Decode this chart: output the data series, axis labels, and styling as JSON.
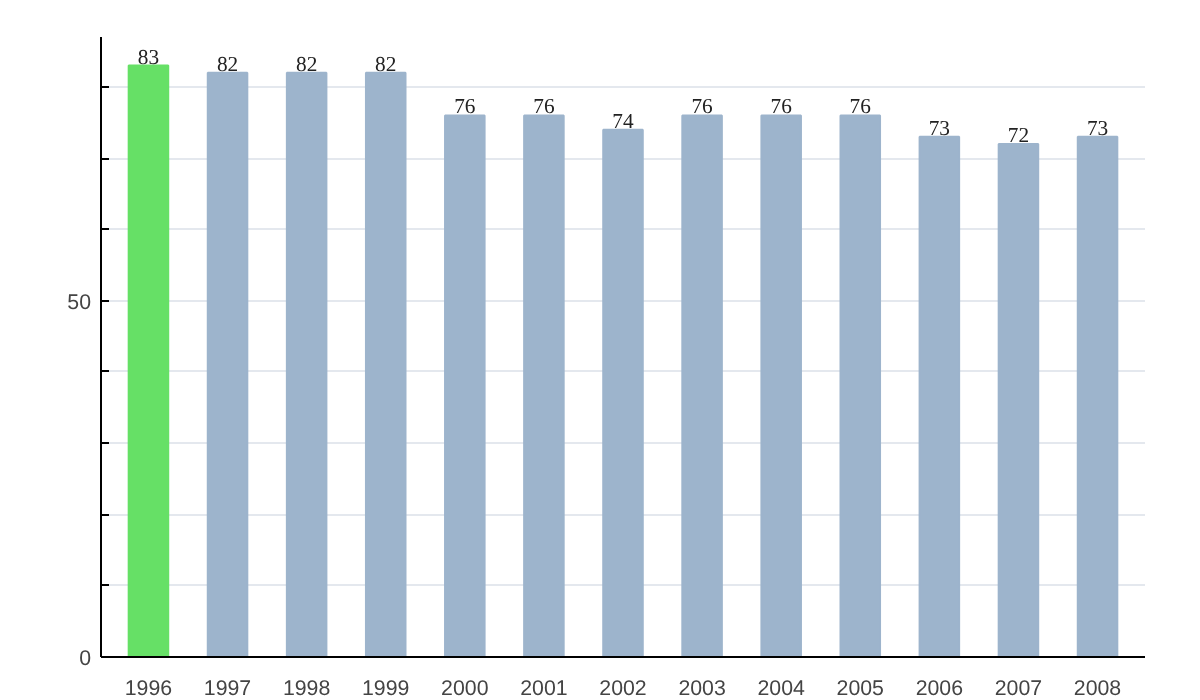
{
  "chart_data": {
    "type": "bar",
    "categories": [
      "1996",
      "1997",
      "1998",
      "1999",
      "2000",
      "2001",
      "2002",
      "2003",
      "2004",
      "2005",
      "2006",
      "2007",
      "2008"
    ],
    "values": [
      83,
      82,
      82,
      82,
      76,
      76,
      74,
      76,
      76,
      76,
      73,
      72,
      73
    ],
    "colors": [
      "#66e066",
      "#9db4cc",
      "#9db4cc",
      "#9db4cc",
      "#9db4cc",
      "#9db4cc",
      "#9db4cc",
      "#9db4cc",
      "#9db4cc",
      "#9db4cc",
      "#9db4cc",
      "#9db4cc",
      "#9db4cc"
    ],
    "ylim": [
      0,
      87
    ],
    "yticks": [
      0,
      {
        "value": 10,
        "label": null
      },
      {
        "value": 20,
        "label": null
      },
      {
        "value": 30,
        "label": null
      },
      {
        "value": 40,
        "label": null
      },
      50,
      {
        "value": 60,
        "label": null
      },
      {
        "value": 70,
        "label": null
      },
      {
        "value": 80,
        "label": null
      }
    ],
    "grid": "y",
    "data_labels": true
  }
}
